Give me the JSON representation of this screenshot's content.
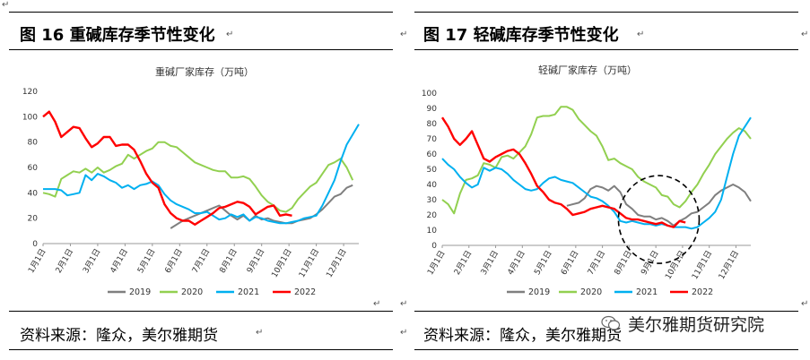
{
  "left_panel": {
    "fig_title": "图 16  重碱库存季节性变化",
    "source": "资料来源：隆众，美尔雅期货"
  },
  "right_panel": {
    "fig_title": "图 17    轻碱库存季节性变化",
    "source": "资料来源：隆众，美尔雅期货"
  },
  "watermark": {
    "text": "美尔雅期货研究院",
    "icon": "wechat-icon"
  },
  "colors": {
    "2019": "#7f7f7f",
    "2020": "#92d050",
    "2021": "#00b0f0",
    "2022": "#ff0000",
    "circle": "#000000"
  },
  "chart_data": [
    {
      "type": "line",
      "title": "重碱厂家库存（万吨）",
      "ylim": [
        0,
        120
      ],
      "yticks": [
        0,
        20,
        40,
        60,
        80,
        100,
        120
      ],
      "x_domain": [
        1,
        53
      ],
      "x_tick_labels": [
        "1月1日",
        "2月1日",
        "3月1日",
        "4月1日",
        "5月1日",
        "6月1日",
        "7月1日",
        "8月1日",
        "9月1日",
        "10月1日",
        "11月1日",
        "12月1日"
      ],
      "x_tick_positions": [
        1,
        5.5,
        10,
        14.5,
        19,
        23.5,
        28,
        32.5,
        37,
        41.5,
        46,
        50.5
      ],
      "legend_position": "bottom",
      "series": [
        {
          "name": "2019",
          "x": [
            22,
            24,
            26,
            28,
            29,
            30,
            31,
            32,
            33,
            34,
            35,
            36,
            37,
            38,
            39,
            40,
            41,
            42,
            43,
            44,
            45,
            46,
            47,
            48,
            49,
            50,
            51,
            52
          ],
          "values": [
            12,
            18,
            22,
            26,
            28,
            30,
            26,
            22,
            19,
            22,
            18,
            22,
            19,
            20,
            18,
            17,
            16,
            16,
            18,
            19,
            20,
            23,
            27,
            32,
            37,
            39,
            44,
            46
          ]
        },
        {
          "name": "2020",
          "x": [
            1,
            2,
            3,
            4,
            5,
            6,
            7,
            8,
            9,
            10,
            11,
            12,
            13,
            14,
            15,
            16,
            17,
            18,
            19,
            20,
            21,
            22,
            23,
            24,
            25,
            26,
            27,
            28,
            29,
            30,
            31,
            32,
            33,
            34,
            35,
            36,
            37,
            38,
            39,
            40,
            41,
            42,
            43,
            44,
            45,
            46,
            47,
            48,
            49,
            50,
            51,
            52
          ],
          "values": [
            40,
            39,
            37,
            51,
            54,
            57,
            56,
            59,
            56,
            60,
            56,
            58,
            61,
            63,
            70,
            67,
            70,
            73,
            75,
            80,
            80,
            77,
            76,
            72,
            68,
            64,
            62,
            60,
            58,
            57,
            57,
            52,
            52,
            53,
            51,
            45,
            38,
            33,
            30,
            26,
            25,
            28,
            35,
            40,
            45,
            48,
            55,
            62,
            64,
            67,
            60,
            50
          ]
        },
        {
          "name": "2021",
          "x": [
            1,
            2,
            3,
            4,
            5,
            6,
            7,
            8,
            9,
            10,
            11,
            12,
            13,
            14,
            15,
            16,
            17,
            18,
            19,
            20,
            21,
            22,
            23,
            24,
            25,
            26,
            27,
            28,
            29,
            30,
            31,
            32,
            33,
            34,
            35,
            36,
            37,
            38,
            39,
            40,
            41,
            42,
            43,
            44,
            45,
            46,
            47,
            48,
            49,
            50,
            51,
            52,
            53
          ],
          "values": [
            43,
            43,
            43,
            42,
            38,
            39,
            40,
            54,
            50,
            55,
            53,
            50,
            48,
            44,
            46,
            43,
            46,
            47,
            49,
            46,
            39,
            34,
            31,
            29,
            27,
            24,
            24,
            25,
            22,
            19,
            20,
            23,
            21,
            23,
            18,
            21,
            20,
            18,
            17,
            16,
            16,
            17,
            18,
            20,
            21,
            22,
            30,
            40,
            50,
            65,
            78,
            86,
            94
          ]
        },
        {
          "name": "2022",
          "x": [
            1,
            2,
            3,
            4,
            5,
            6,
            7,
            8,
            9,
            10,
            11,
            12,
            13,
            14,
            15,
            16,
            17,
            18,
            19,
            20,
            21,
            22,
            23,
            24,
            25,
            26,
            27,
            28,
            29,
            30,
            31,
            32,
            33,
            34,
            35,
            36,
            37,
            38,
            39,
            40,
            41,
            42
          ],
          "values": [
            100,
            104,
            96,
            84,
            88,
            92,
            91,
            83,
            76,
            79,
            84,
            84,
            77,
            78,
            78,
            74,
            65,
            55,
            48,
            44,
            31,
            24,
            20,
            18,
            18,
            15,
            18,
            21,
            24,
            28,
            29,
            31,
            33,
            32,
            29,
            23,
            26,
            29,
            30,
            22,
            23,
            22
          ]
        }
      ]
    },
    {
      "type": "line",
      "title": "轻碱厂家库存（万吨）",
      "ylim": [
        0,
        100
      ],
      "yticks": [
        0,
        10,
        20,
        30,
        40,
        50,
        60,
        70,
        80,
        90,
        100
      ],
      "x_domain": [
        1,
        53
      ],
      "x_tick_labels": [
        "1月1日",
        "2月1日",
        "3月1日",
        "4月1日",
        "5月1日",
        "6月1日",
        "7月1日",
        "8月1日",
        "9月1日",
        "10月1日",
        "11月1日",
        "12月1日"
      ],
      "x_tick_positions": [
        1,
        5.5,
        10,
        14.5,
        19,
        23.5,
        28,
        32.5,
        37,
        41.5,
        46,
        50.5
      ],
      "legend_position": "bottom",
      "annotation": "dashed-circle",
      "series": [
        {
          "name": "2019",
          "x": [
            22,
            24,
            25,
            26,
            27,
            28,
            29,
            30,
            31,
            32,
            33,
            34,
            35,
            36,
            37,
            38,
            39,
            40,
            41,
            42,
            43,
            44,
            45,
            46,
            47,
            48,
            49,
            50,
            51,
            52,
            53
          ],
          "values": [
            26,
            28,
            31,
            37,
            39,
            38,
            36,
            39,
            35,
            27,
            24,
            20,
            19,
            19,
            17,
            18,
            16,
            13,
            16,
            18,
            21,
            22,
            25,
            28,
            33,
            36,
            38,
            40,
            38,
            35,
            29
          ]
        },
        {
          "name": "2020",
          "x": [
            1,
            2,
            3,
            4,
            5,
            6,
            7,
            8,
            9,
            10,
            11,
            12,
            13,
            14,
            15,
            16,
            17,
            18,
            19,
            20,
            21,
            22,
            23,
            24,
            25,
            26,
            27,
            28,
            29,
            30,
            31,
            32,
            33,
            34,
            35,
            36,
            37,
            38,
            39,
            40,
            41,
            42,
            43,
            44,
            45,
            46,
            47,
            48,
            49,
            50,
            51,
            52,
            53
          ],
          "values": [
            30,
            27,
            21,
            34,
            43,
            44,
            46,
            54,
            53,
            51,
            58,
            59,
            57,
            61,
            65,
            73,
            84,
            85,
            85,
            86,
            91,
            91,
            89,
            83,
            79,
            75,
            72,
            65,
            56,
            57,
            54,
            52,
            50,
            45,
            42,
            40,
            38,
            33,
            32,
            27,
            25,
            29,
            35,
            40,
            47,
            53,
            60,
            65,
            70,
            74,
            77,
            75,
            70
          ]
        },
        {
          "name": "2021",
          "x": [
            1,
            2,
            3,
            4,
            5,
            6,
            7,
            8,
            9,
            10,
            11,
            12,
            13,
            14,
            15,
            16,
            17,
            18,
            19,
            20,
            21,
            22,
            23,
            24,
            25,
            26,
            27,
            28,
            29,
            30,
            31,
            32,
            33,
            34,
            35,
            36,
            37,
            38,
            39,
            40,
            41,
            42,
            43,
            44,
            45,
            46,
            47,
            48,
            49,
            50,
            51,
            52,
            53
          ],
          "values": [
            57,
            53,
            50,
            45,
            41,
            38,
            40,
            51,
            49,
            51,
            50,
            47,
            43,
            40,
            37,
            36,
            37,
            41,
            44,
            45,
            43,
            42,
            41,
            38,
            35,
            32,
            31,
            29,
            26,
            22,
            16,
            15,
            16,
            15,
            14,
            14,
            13,
            14,
            13,
            12,
            12,
            12,
            11,
            12,
            15,
            18,
            22,
            30,
            45,
            60,
            72,
            78,
            84
          ]
        },
        {
          "name": "2022",
          "x": [
            1,
            2,
            3,
            4,
            5,
            6,
            7,
            8,
            9,
            10,
            11,
            12,
            13,
            14,
            15,
            16,
            17,
            18,
            19,
            20,
            21,
            22,
            23,
            24,
            25,
            26,
            27,
            28,
            29,
            30,
            31,
            32,
            33,
            34,
            35,
            36,
            37,
            38,
            39,
            40,
            41,
            42
          ],
          "values": [
            84,
            78,
            70,
            66,
            70,
            75,
            66,
            57,
            55,
            58,
            60,
            62,
            63,
            60,
            54,
            47,
            39,
            35,
            30,
            28,
            27,
            24,
            20,
            21,
            22,
            24,
            25,
            26,
            25,
            24,
            21,
            18,
            17,
            17,
            16,
            15,
            14,
            15,
            13,
            12,
            16,
            15
          ]
        }
      ]
    }
  ]
}
